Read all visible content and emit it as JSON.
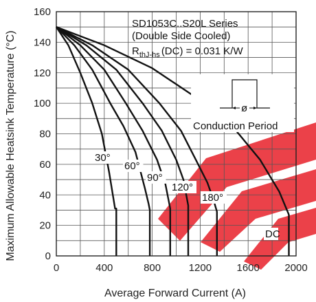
{
  "chart_data": {
    "type": "line",
    "title": "",
    "xlabel": "Average Forward Current (A)",
    "ylabel": "Maximum Allowable Heatsink Temperature (°C)",
    "xlim": [
      0,
      2000
    ],
    "ylim": [
      0,
      160
    ],
    "x_ticks": [
      "0",
      "400",
      "800",
      "1200",
      "1600",
      "2000"
    ],
    "y_ticks": [
      "0",
      "20",
      "40",
      "60",
      "80",
      "100",
      "120",
      "140",
      "160"
    ],
    "grid": true,
    "annotations": {
      "series_title": "SD1053C..S20L Series",
      "cooling": "(Double Side Cooled)",
      "rth_main": "R",
      "rth_sub": "thJ-hs",
      "rth_value": "(DC) = 0.031 K/W",
      "inset_label": "Conduction Period",
      "inset_symbol": "ø"
    },
    "series": [
      {
        "name": "30°",
        "x": [
          0,
          100,
          200,
          300,
          380,
          440,
          490,
          500,
          500
        ],
        "y": [
          150,
          138,
          120,
          100,
          80,
          55,
          31,
          31,
          0
        ]
      },
      {
        "name": "60°",
        "x": [
          0,
          150,
          300,
          450,
          560,
          660,
          740,
          770,
          780,
          780
        ],
        "y": [
          150,
          138,
          122,
          100,
          85,
          68,
          44,
          34,
          30,
          0
        ]
      },
      {
        "name": "90°",
        "x": [
          0,
          200,
          400,
          580,
          720,
          840,
          910,
          950,
          950
        ],
        "y": [
          150,
          138,
          122,
          100,
          82,
          63,
          47,
          31,
          0
        ]
      },
      {
        "name": "120°",
        "x": [
          0,
          250,
          500,
          720,
          880,
          1000,
          1060,
          1100,
          1100
        ],
        "y": [
          150,
          138,
          122,
          100,
          82,
          63,
          50,
          33,
          0
        ]
      },
      {
        "name": "180°",
        "x": [
          0,
          300,
          600,
          860,
          1040,
          1170,
          1260,
          1310,
          1340,
          1340
        ],
        "y": [
          150,
          138,
          122,
          100,
          82,
          62,
          48,
          37,
          29,
          0
        ]
      },
      {
        "name": "DC",
        "x": [
          0,
          400,
          800,
          1200,
          1500,
          1700,
          1860,
          1940,
          1940
        ],
        "y": [
          150,
          138,
          123,
          102,
          82,
          63,
          42,
          27,
          0
        ]
      }
    ]
  }
}
